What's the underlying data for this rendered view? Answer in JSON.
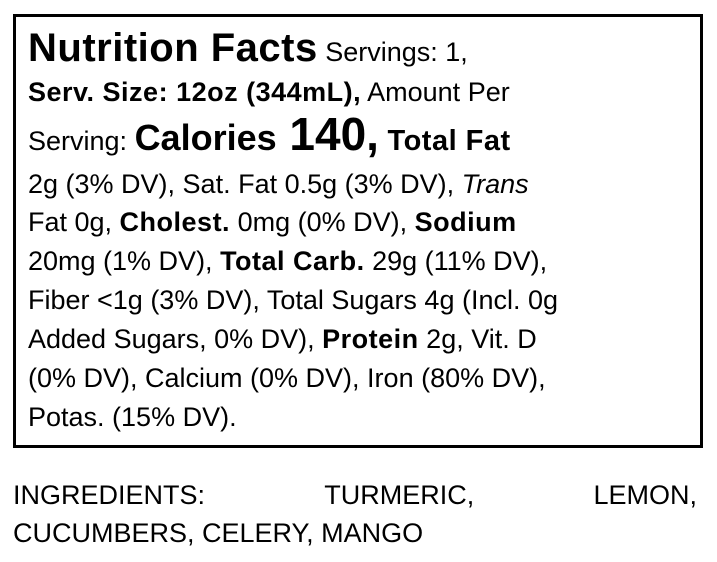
{
  "nutrition_facts": {
    "title": "Nutrition Facts",
    "lines": [
      [
        " Servings: 1,"
      ],
      [
        "Serv. Size: 12oz (344mL),",
        " Amount Per"
      ],
      [
        "Serving: ",
        "Calories",
        " 140,",
        " Total Fat"
      ],
      [
        "2g (3% DV), Sat. Fat 0.5g (3% DV), ",
        "Trans"
      ],
      [
        "Fat 0g, ",
        "Cholest.",
        " 0mg (0% DV), ",
        "Sodium"
      ],
      [
        "20mg (1% DV), ",
        "Total Carb.",
        " 29g (11% DV),"
      ],
      [
        "Fiber <1g (3% DV), Total Sugars 4g (Incl. 0g"
      ],
      [
        "Added Sugars, 0% DV), ",
        "Protein",
        " 2g, Vit. D"
      ],
      [
        "(0% DV), Calcium (0% DV), Iron (80% DV),"
      ],
      [
        "Potas. (15% DV)."
      ]
    ]
  },
  "ingredients": {
    "label": "INGREDIENTS:",
    "items": [
      "TURMERIC,",
      "LEMON,",
      "CUCUMBERS, CELERY, MANGO"
    ]
  }
}
